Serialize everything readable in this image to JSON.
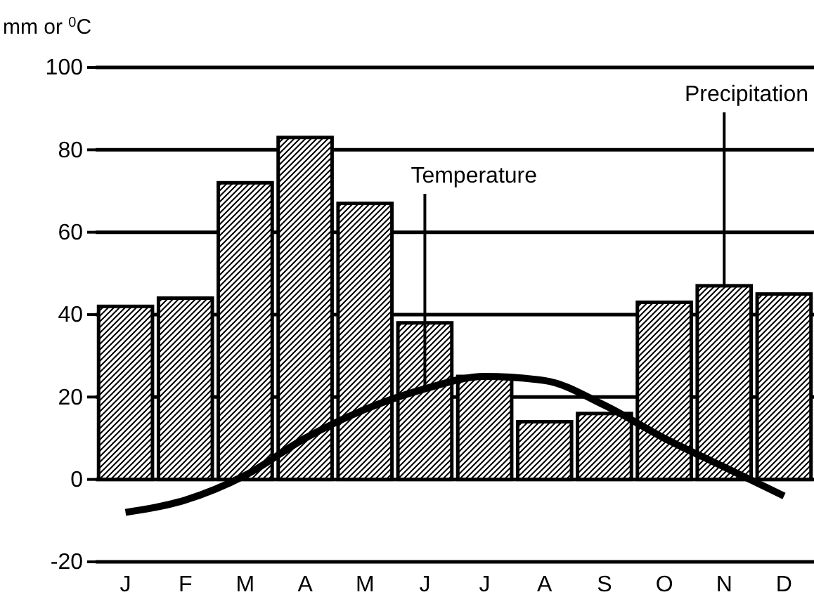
{
  "chart_data": {
    "type": "bar",
    "ylabel": "mm or $^{0}$C",
    "categories": [
      "J",
      "F",
      "M",
      "A",
      "M",
      "J",
      "J",
      "A",
      "S",
      "O",
      "N",
      "D"
    ],
    "series": [
      {
        "name": "Precipitation",
        "color": "#000000",
        "values": [
          42,
          44,
          72,
          83,
          67,
          38,
          25,
          14,
          16,
          43,
          47,
          45
        ]
      },
      {
        "name": "Temperature",
        "type": "line",
        "color": "#000000",
        "values": [
          -8,
          -5,
          1,
          10,
          17,
          22,
          25,
          24,
          18,
          10,
          3,
          -4
        ]
      }
    ],
    "ylim": [
      -20,
      100
    ],
    "yticks": [
      -20,
      0,
      20,
      40,
      60,
      80,
      100
    ],
    "grid": "y",
    "legend": false,
    "marker": "none",
    "line_style": "solid"
  }
}
